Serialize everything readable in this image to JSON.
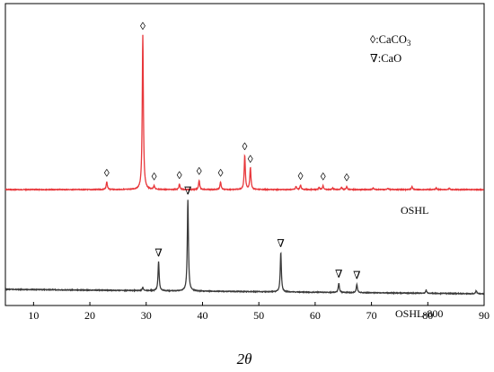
{
  "chart_data": {
    "type": "line",
    "title": "",
    "xlabel": "2θ",
    "ylabel": "",
    "xlim": [
      5,
      90
    ],
    "x_ticks": [
      10,
      20,
      30,
      40,
      50,
      60,
      70,
      80,
      90
    ],
    "y_ticks_shown": false,
    "grid": false,
    "legend": {
      "placement": "top-right",
      "entries": [
        {
          "symbol": "◊",
          "text": "CaCO3"
        },
        {
          "symbol": "∇",
          "text": "CaO"
        }
      ]
    },
    "series": [
      {
        "name": "OSHL",
        "color": "#e8373b",
        "baseline": 0.0,
        "peaks": [
          {
            "x": 23.0,
            "h": 0.05
          },
          {
            "x": 29.4,
            "h": 1.0
          },
          {
            "x": 31.4,
            "h": 0.025
          },
          {
            "x": 35.9,
            "h": 0.035
          },
          {
            "x": 39.4,
            "h": 0.06
          },
          {
            "x": 43.2,
            "h": 0.05
          },
          {
            "x": 47.5,
            "h": 0.22
          },
          {
            "x": 48.5,
            "h": 0.14
          },
          {
            "x": 56.6,
            "h": 0.02
          },
          {
            "x": 57.4,
            "h": 0.03
          },
          {
            "x": 60.7,
            "h": 0.015
          },
          {
            "x": 61.4,
            "h": 0.025
          },
          {
            "x": 63.1,
            "h": 0.01
          },
          {
            "x": 64.7,
            "h": 0.015
          },
          {
            "x": 65.6,
            "h": 0.02
          },
          {
            "x": 70.3,
            "h": 0.01
          },
          {
            "x": 72.9,
            "h": 0.01
          },
          {
            "x": 77.2,
            "h": 0.02
          },
          {
            "x": 81.5,
            "h": 0.01
          },
          {
            "x": 83.8,
            "h": 0.008
          }
        ],
        "markers": [
          {
            "x": 23.0,
            "symbol": "◊"
          },
          {
            "x": 29.4,
            "symbol": "◊"
          },
          {
            "x": 31.4,
            "symbol": "◊"
          },
          {
            "x": 35.9,
            "symbol": "◊"
          },
          {
            "x": 39.4,
            "symbol": "◊"
          },
          {
            "x": 43.2,
            "symbol": "◊"
          },
          {
            "x": 47.5,
            "symbol": "◊"
          },
          {
            "x": 48.5,
            "symbol": "◊"
          },
          {
            "x": 57.4,
            "symbol": "◊"
          },
          {
            "x": 61.4,
            "symbol": "◊"
          },
          {
            "x": 65.6,
            "symbol": "◊"
          }
        ]
      },
      {
        "name": "OSHL-800",
        "color": "#3a3a3a",
        "baseline": 0.0,
        "peaks": [
          {
            "x": 29.4,
            "h": 0.03
          },
          {
            "x": 32.2,
            "h": 0.28
          },
          {
            "x": 37.4,
            "h": 0.88
          },
          {
            "x": 53.9,
            "h": 0.38
          },
          {
            "x": 64.2,
            "h": 0.09
          },
          {
            "x": 67.4,
            "h": 0.08
          },
          {
            "x": 79.7,
            "h": 0.03
          },
          {
            "x": 88.6,
            "h": 0.03
          }
        ],
        "markers": [
          {
            "x": 32.2,
            "symbol": "∇"
          },
          {
            "x": 37.4,
            "symbol": "∇"
          },
          {
            "x": 53.9,
            "symbol": "∇"
          },
          {
            "x": 64.2,
            "symbol": "∇"
          },
          {
            "x": 67.4,
            "symbol": "∇"
          }
        ]
      }
    ]
  }
}
